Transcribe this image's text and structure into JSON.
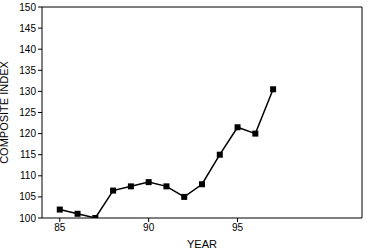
{
  "chart_data": {
    "type": "line",
    "x_label": "YEAR",
    "y_label": "COMPOSITE INDEX",
    "x": [
      85,
      86,
      87,
      88,
      89,
      90,
      91,
      92,
      93,
      94,
      95,
      96,
      97
    ],
    "values": [
      102,
      101,
      100,
      106.5,
      107.5,
      108.5,
      107.5,
      105,
      108,
      115,
      121.5,
      120,
      130.5
    ],
    "color": "#000000",
    "marker": "square",
    "xlim": [
      84,
      102
    ],
    "xticks": [
      85,
      90,
      95
    ],
    "ylim": [
      100,
      150
    ],
    "yticks": [
      100,
      105,
      110,
      115,
      120,
      125,
      130,
      135,
      140,
      145,
      150
    ],
    "grid": false
  }
}
